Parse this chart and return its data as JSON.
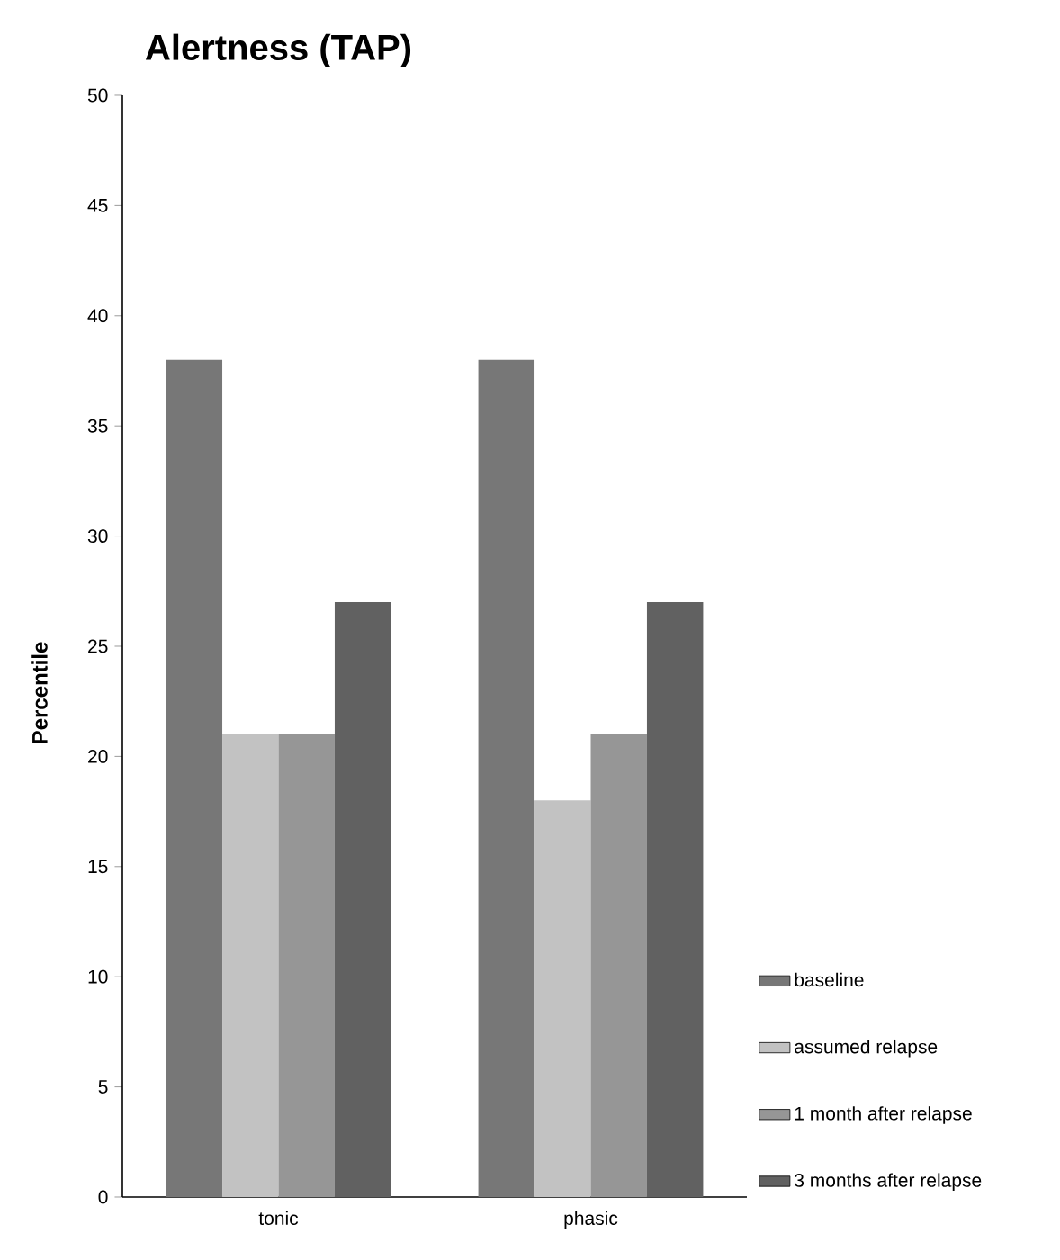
{
  "chart_data": {
    "type": "bar",
    "title": "Alertness (TAP)",
    "ylabel": "Percentile",
    "categories": [
      "tonic",
      "phasic"
    ],
    "series": [
      {
        "name": "baseline",
        "color": "#777777",
        "values": [
          38,
          38
        ]
      },
      {
        "name": "assumed relapse",
        "color": "#c2c2c2",
        "values": [
          21,
          18
        ]
      },
      {
        "name": "1 month after relapse",
        "color": "#969696",
        "values": [
          21,
          21
        ]
      },
      {
        "name": "3 months after relapse",
        "color": "#616161",
        "values": [
          27,
          27
        ]
      }
    ],
    "ylim": [
      0,
      50
    ],
    "yticks": [
      0,
      5,
      10,
      15,
      20,
      25,
      30,
      35,
      40,
      45,
      50
    ],
    "grid": false,
    "legend": "right"
  }
}
